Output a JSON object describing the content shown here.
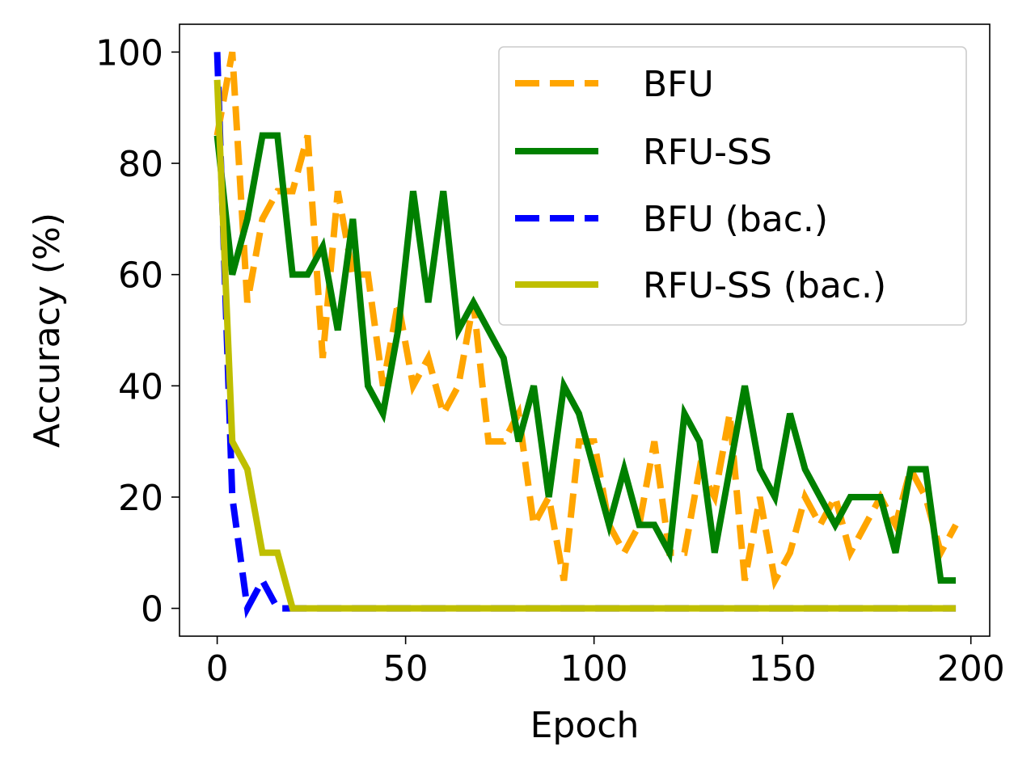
{
  "chart_data": {
    "type": "line",
    "title": "",
    "xlabel": "Epoch",
    "ylabel": "Accuracy (%)",
    "xlim": [
      -10,
      205
    ],
    "ylim": [
      -5,
      105
    ],
    "xticks": [
      0,
      50,
      100,
      150,
      200
    ],
    "yticks": [
      0,
      20,
      40,
      60,
      80,
      100
    ],
    "xtick_labels": [
      "0",
      "50",
      "100",
      "150",
      "200"
    ],
    "ytick_labels": [
      "0",
      "20",
      "40",
      "60",
      "80",
      "100"
    ],
    "grid": false,
    "legend_position": "top-right",
    "series": [
      {
        "name": "BFU",
        "color": "#FFA500",
        "style": "dashed",
        "x": [
          0,
          4,
          8,
          12,
          16,
          20,
          24,
          28,
          32,
          36,
          40,
          44,
          48,
          52,
          56,
          60,
          64,
          68,
          72,
          76,
          80,
          84,
          88,
          92,
          96,
          100,
          104,
          108,
          112,
          116,
          120,
          124,
          128,
          132,
          136,
          140,
          144,
          148,
          152,
          156,
          160,
          164,
          168,
          172,
          176,
          180,
          184,
          188,
          192,
          196
        ],
        "y": [
          85,
          100,
          55,
          70,
          75,
          75,
          85,
          45,
          75,
          60,
          60,
          40,
          55,
          40,
          45,
          35,
          40,
          55,
          30,
          30,
          35,
          15,
          20,
          5,
          30,
          30,
          15,
          10,
          15,
          30,
          10,
          10,
          25,
          20,
          35,
          5,
          20,
          5,
          10,
          20,
          15,
          20,
          10,
          15,
          20,
          15,
          25,
          20,
          10,
          15
        ]
      },
      {
        "name": "RFU-SS",
        "color": "#008000",
        "style": "solid",
        "x": [
          0,
          4,
          8,
          12,
          16,
          20,
          24,
          28,
          32,
          36,
          40,
          44,
          48,
          52,
          56,
          60,
          64,
          68,
          72,
          76,
          80,
          84,
          88,
          92,
          96,
          100,
          104,
          108,
          112,
          116,
          120,
          124,
          128,
          132,
          136,
          140,
          144,
          148,
          152,
          156,
          160,
          164,
          168,
          172,
          176,
          180,
          184,
          188,
          192,
          196
        ],
        "y": [
          85,
          60,
          70,
          85,
          85,
          60,
          60,
          65,
          50,
          70,
          40,
          35,
          50,
          75,
          55,
          75,
          50,
          55,
          50,
          45,
          30,
          40,
          20,
          40,
          35,
          25,
          15,
          25,
          15,
          15,
          10,
          35,
          30,
          10,
          25,
          40,
          25,
          20,
          35,
          25,
          20,
          15,
          20,
          20,
          20,
          10,
          25,
          25,
          5,
          5
        ]
      },
      {
        "name": "BFU (bac.)",
        "color": "#0000FF",
        "style": "dashed",
        "x": [
          0,
          4,
          8,
          12,
          16,
          20,
          196
        ],
        "y": [
          100,
          20,
          0,
          5,
          0,
          0,
          0
        ]
      },
      {
        "name": "RFU-SS (bac.)",
        "color": "#BFBF00",
        "style": "solid",
        "x": [
          0,
          4,
          8,
          12,
          16,
          20,
          196
        ],
        "y": [
          95,
          30,
          25,
          10,
          10,
          0,
          0
        ]
      }
    ]
  }
}
